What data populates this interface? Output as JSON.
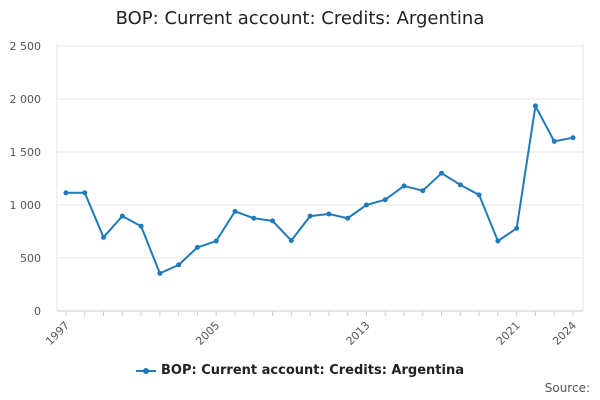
{
  "title": "BOP: Current account: Credits: Argentina",
  "source_label": "Source:",
  "colors": {
    "series": "#1f7ab8",
    "grid": "#e6e6e6",
    "axis": "#cccccc"
  },
  "chart_data": {
    "type": "line",
    "title": "BOP: Current account: Credits: Argentina",
    "xlabel": "",
    "ylabel": "",
    "xlim": [
      1997,
      2024
    ],
    "ylim": [
      0,
      2500
    ],
    "x_ticks": [
      1997,
      2005,
      2013,
      2021,
      2024
    ],
    "y_ticks": [
      0,
      500,
      1000,
      1500,
      2000,
      2500
    ],
    "y_tick_labels": [
      "0",
      "500",
      "1 000",
      "1 500",
      "2 000",
      "2 500"
    ],
    "grid": true,
    "legend_position": "bottom",
    "series": [
      {
        "name": "BOP: Current account: Credits: Argentina",
        "x": [
          1997,
          1998,
          1999,
          2000,
          2001,
          2002,
          2003,
          2004,
          2005,
          2006,
          2007,
          2008,
          2009,
          2010,
          2011,
          2012,
          2013,
          2014,
          2015,
          2016,
          2017,
          2018,
          2019,
          2020,
          2021,
          2022,
          2023,
          2024
        ],
        "values": [
          1115,
          1115,
          695,
          895,
          800,
          355,
          435,
          600,
          660,
          940,
          875,
          850,
          665,
          895,
          915,
          875,
          1000,
          1050,
          1180,
          1135,
          1300,
          1190,
          1095,
          660,
          780,
          1935,
          1600,
          1635
        ]
      }
    ]
  }
}
